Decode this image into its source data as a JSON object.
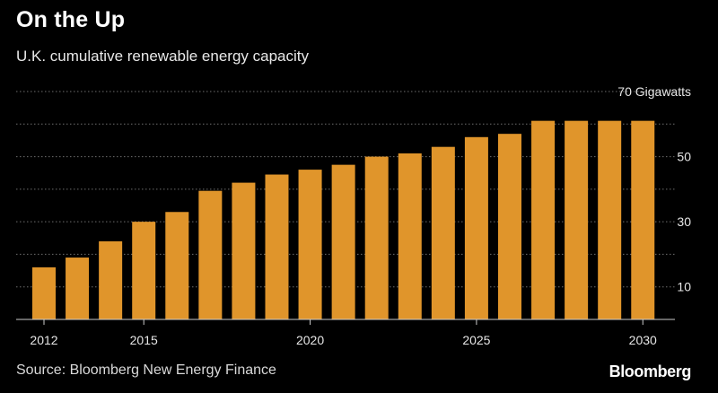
{
  "header": {
    "title": "On the Up",
    "subtitle": "U.K. cumulative renewable energy capacity"
  },
  "footer": {
    "source": "Source: Bloomberg New Energy Finance",
    "brand": "Bloomberg"
  },
  "colors": {
    "bar": "#e0952b",
    "grid": "#6e6e6e",
    "axis": "#cccccc",
    "background": "#000000"
  },
  "chart_data": {
    "type": "bar",
    "title": "On the Up",
    "subtitle": "U.K. cumulative renewable energy capacity",
    "unit_label": "70 Gigawatts",
    "categories": [
      "2012",
      "2013",
      "2014",
      "2015",
      "2016",
      "2017",
      "2018",
      "2019",
      "2020",
      "2021",
      "2022",
      "2023",
      "2024",
      "2025",
      "2026",
      "2027",
      "2028",
      "2029",
      "2030"
    ],
    "values": [
      16,
      19,
      24,
      30,
      33,
      39.5,
      42,
      44.5,
      46,
      47.5,
      50,
      51,
      53,
      56,
      57,
      61,
      61,
      61,
      61
    ],
    "x_tick_labels": [
      "2012",
      "2015",
      "2020",
      "2025",
      "2030"
    ],
    "y_tick_labels": [
      "10",
      "30",
      "50",
      "70 Gigawatts"
    ],
    "y_ticks": [
      10,
      30,
      50,
      70
    ],
    "gridlines": [
      0,
      10,
      20,
      30,
      40,
      50,
      60,
      70
    ],
    "ylim": [
      0,
      70
    ],
    "grid": true,
    "y_axis_side": "right"
  }
}
